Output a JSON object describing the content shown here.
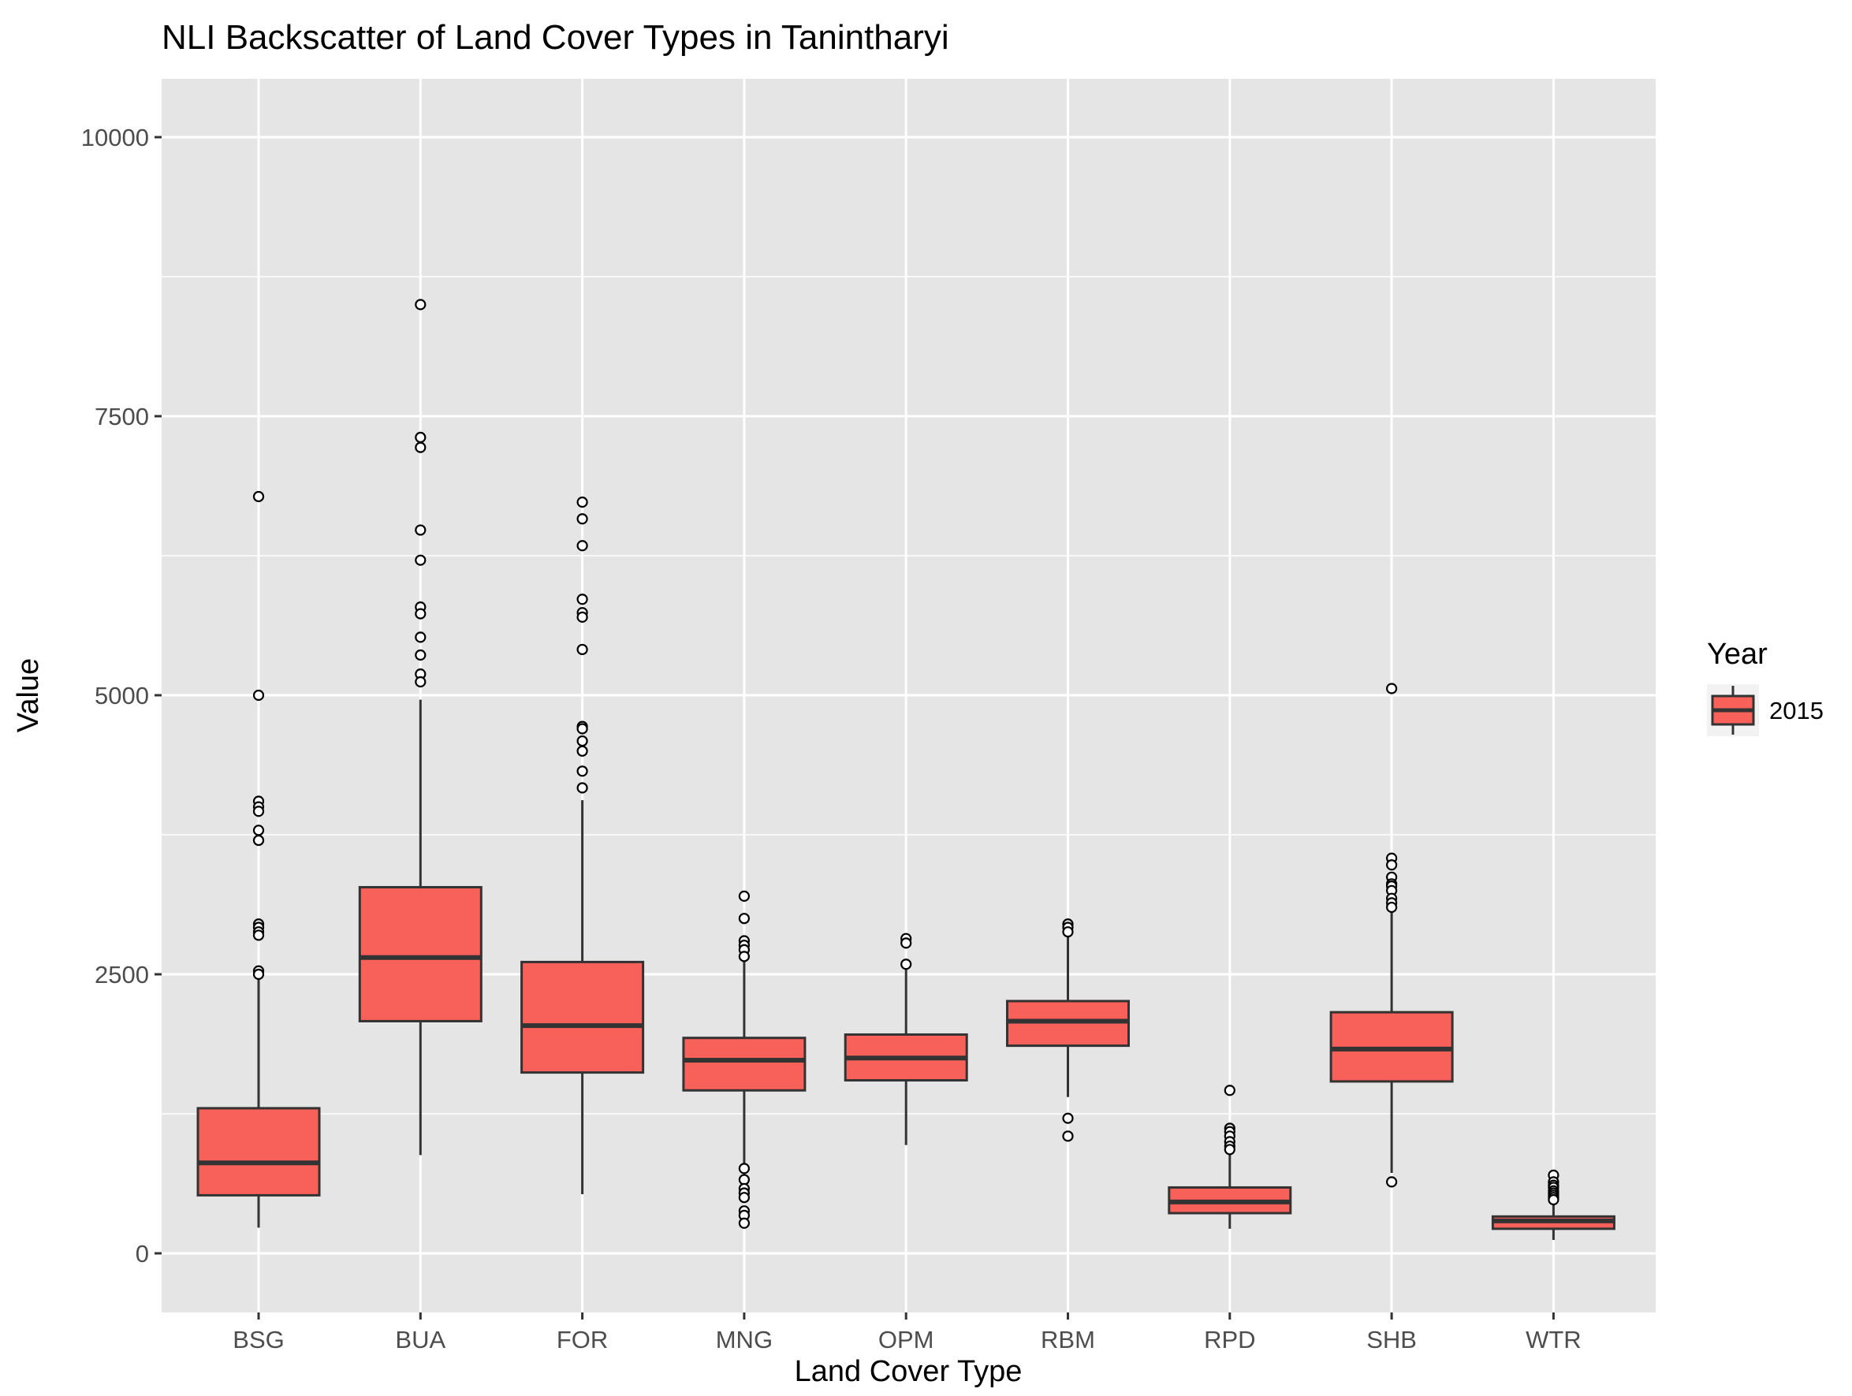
{
  "chart_data": {
    "type": "box",
    "title": "NLI Backscatter of Land Cover Types in Tanintharyi",
    "xlabel": "Land Cover Type",
    "ylabel": "Value",
    "ylim": [
      -400,
      10500
    ],
    "yticks": [
      0,
      2500,
      5000,
      7500,
      10000
    ],
    "grid": true,
    "legend": {
      "title": "Year",
      "position": "right",
      "entries": [
        "2015"
      ]
    },
    "colors": {
      "fill": "#f8605a",
      "stroke": "#333333",
      "panel": "#e5e5e5",
      "grid": "#ffffff"
    },
    "categories": [
      "BSG",
      "BUA",
      "FOR",
      "MNG",
      "OPM",
      "RBM",
      "RPD",
      "SHB",
      "WTR"
    ],
    "series": [
      {
        "name": "2015",
        "boxes": [
          {
            "category": "BSG",
            "whisker_low": 230,
            "q1": 520,
            "median": 810,
            "q3": 1300,
            "whisker_high": 2460,
            "outliers": [
              6780,
              5000,
              4050,
              4000,
              3960,
              3790,
              3700,
              2950,
              2920,
              2880,
              2850,
              2530,
              2500
            ]
          },
          {
            "category": "BUA",
            "whisker_low": 880,
            "q1": 2080,
            "median": 2650,
            "q3": 3280,
            "whisker_high": 4960,
            "outliers": [
              8500,
              7310,
              7220,
              6480,
              6210,
              5790,
              5730,
              5520,
              5360,
              5190,
              5120
            ]
          },
          {
            "category": "FOR",
            "whisker_low": 530,
            "q1": 1620,
            "median": 2040,
            "q3": 2610,
            "whisker_high": 4060,
            "outliers": [
              6730,
              6580,
              6340,
              5860,
              5740,
              5700,
              5410,
              4720,
              4700,
              4590,
              4500,
              4320,
              4170
            ]
          },
          {
            "category": "MNG",
            "whisker_low": 760,
            "q1": 1460,
            "median": 1730,
            "q3": 1930,
            "whisker_high": 2620,
            "outliers": [
              3200,
              3000,
              2800,
              2760,
              2720,
              2660,
              760,
              660,
              580,
              540,
              500,
              380,
              340,
              270
            ]
          },
          {
            "category": "OPM",
            "whisker_low": 970,
            "q1": 1550,
            "median": 1750,
            "q3": 1960,
            "whisker_high": 2560,
            "outliers": [
              2820,
              2780,
              2590
            ]
          },
          {
            "category": "RBM",
            "whisker_low": 1400,
            "q1": 1860,
            "median": 2080,
            "q3": 2260,
            "whisker_high": 2850,
            "outliers": [
              2950,
              2920,
              2880,
              1210,
              1050
            ]
          },
          {
            "category": "RPD",
            "whisker_low": 220,
            "q1": 360,
            "median": 460,
            "q3": 590,
            "whisker_high": 900,
            "outliers": [
              1460,
              1120,
              1090,
              1050,
              1000,
              960,
              930
            ]
          },
          {
            "category": "SHB",
            "whisker_low": 720,
            "q1": 1540,
            "median": 1830,
            "q3": 2160,
            "whisker_high": 3080,
            "outliers": [
              5060,
              3540,
              3480,
              3370,
              3310,
              3290,
              3250,
              3180,
              3140,
              3100,
              640
            ]
          },
          {
            "category": "WTR",
            "whisker_low": 120,
            "q1": 220,
            "median": 290,
            "q3": 330,
            "whisker_high": 470,
            "outliers": [
              700,
              640,
              610,
              590,
              560,
              540,
              520,
              500,
              480
            ]
          }
        ]
      }
    ]
  }
}
